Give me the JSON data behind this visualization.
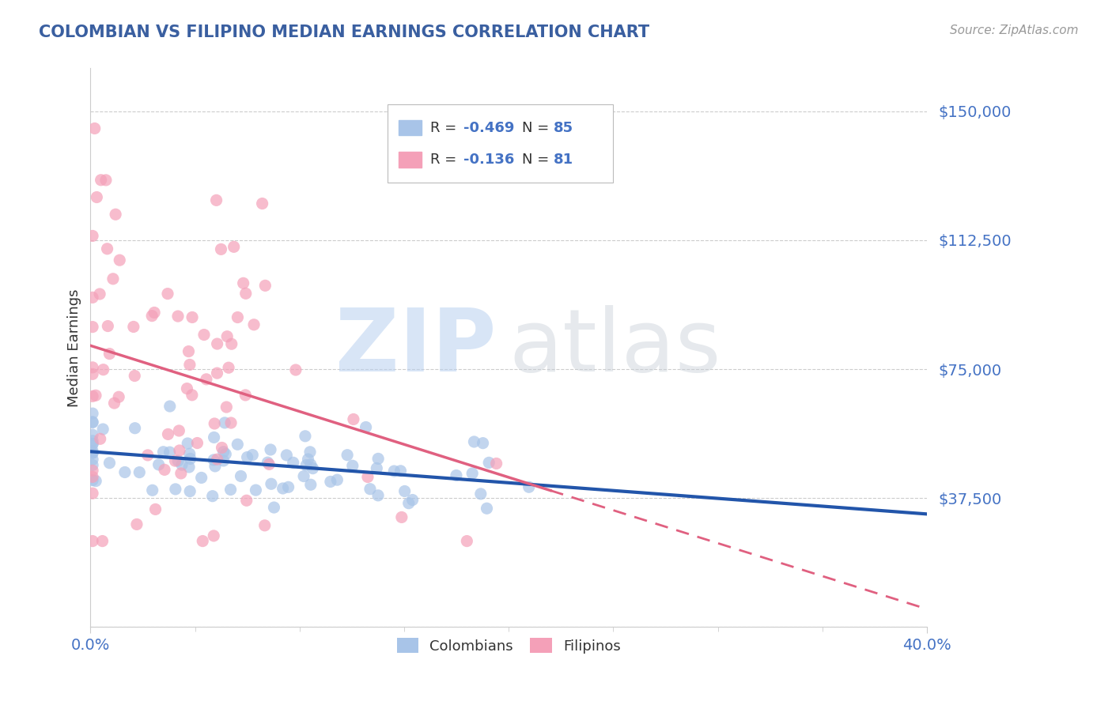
{
  "title": "COLOMBIAN VS FILIPINO MEDIAN EARNINGS CORRELATION CHART",
  "source_text": "Source: ZipAtlas.com",
  "ylabel": "Median Earnings",
  "xlim": [
    0.0,
    0.4
  ],
  "ylim": [
    0,
    162500
  ],
  "yticks": [
    0,
    37500,
    75000,
    112500,
    150000
  ],
  "ytick_labels": [
    "",
    "$37,500",
    "$75,000",
    "$112,500",
    "$150,000"
  ],
  "xtick_labels": [
    "0.0%",
    "40.0%"
  ],
  "xtick_positions": [
    0.0,
    0.4
  ],
  "title_color": "#3a5fa0",
  "axis_label_color": "#4472c4",
  "source_color": "#999999",
  "colombian_color": "#a8c4e8",
  "filipino_color": "#f4a0b8",
  "colombian_line_color": "#2255aa",
  "filipino_line_color": "#e06080",
  "colombian_R": -0.469,
  "colombian_N": 85,
  "filipino_R": -0.136,
  "filipino_N": 81,
  "random_seed": 42,
  "background_color": "#ffffff",
  "grid_color": "#cccccc",
  "legend_label1": "Colombians",
  "legend_label2": "Filipinos"
}
